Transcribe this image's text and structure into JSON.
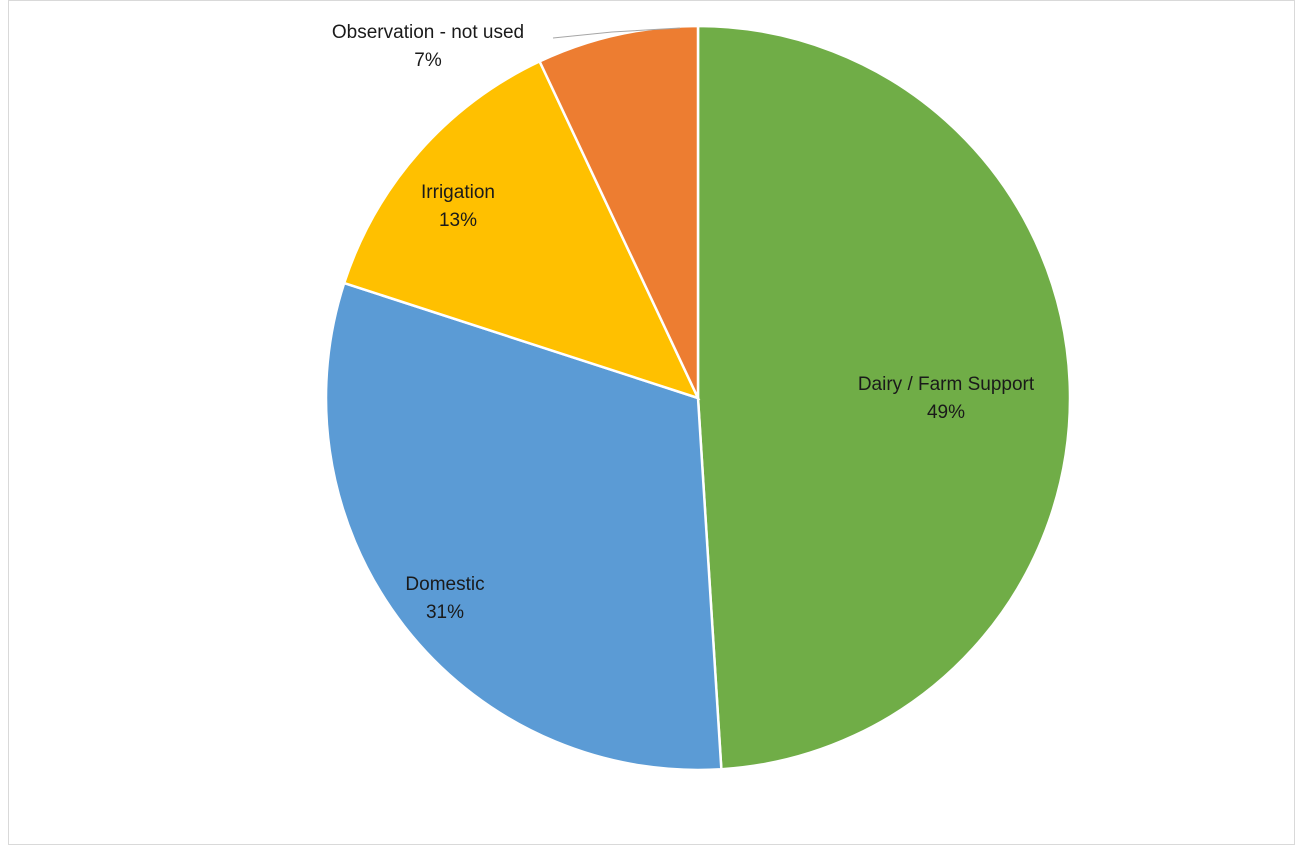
{
  "chart_data": {
    "type": "pie",
    "title": "",
    "slices": [
      {
        "label": "Dairy / Farm Support",
        "value": 49,
        "percent_label": "49%",
        "color": "#70ad47"
      },
      {
        "label": "Domestic",
        "value": 31,
        "percent_label": "31%",
        "color": "#5b9bd5"
      },
      {
        "label": "Irrigation",
        "value": 13,
        "percent_label": "13%",
        "color": "#ffc000"
      },
      {
        "label": "Observation - not used",
        "value": 7,
        "percent_label": "7%",
        "color": "#ed7d31"
      }
    ],
    "legend": "none",
    "data_labels": "category name and percentage"
  }
}
